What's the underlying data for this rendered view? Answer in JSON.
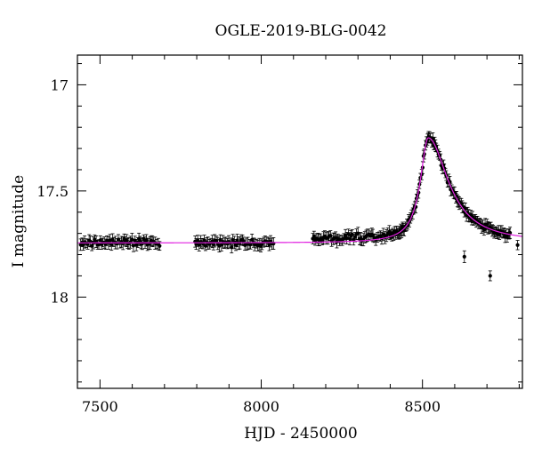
{
  "chart_data": {
    "type": "scatter",
    "title": "OGLE-2019-BLG-0042",
    "xlabel": "HJD - 2450000",
    "ylabel": "I magnitude",
    "xlim": [
      7430,
      8810
    ],
    "ylim": [
      18.43,
      16.86
    ],
    "y_inverted": true,
    "x_ticks": [
      7500,
      8000,
      8500
    ],
    "y_ticks": [
      17,
      17.5,
      18
    ],
    "x_minor_step": 100,
    "y_minor_step": 0.1,
    "grid": false,
    "colors": {
      "points": "#000000",
      "model": "#e020e0",
      "frame": "#000000"
    },
    "series": [
      {
        "kind": "observations",
        "seasons": [
          {
            "x_range": [
              7440,
              7685
            ],
            "baseline_mag": 17.745
          },
          {
            "x_range": [
              7795,
              8040
            ],
            "baseline_mag": 17.745
          },
          {
            "x_range": [
              8160,
              8400
            ],
            "baseline_mag": 17.73
          },
          {
            "x_range": [
              8400,
              8775
            ],
            "follows_model": true
          }
        ],
        "peak": {
          "x": 8518,
          "y": 17.25
        },
        "outliers": [
          {
            "x": 8630,
            "y": 17.81
          },
          {
            "x": 8710,
            "y": 17.9
          },
          {
            "x": 8795,
            "y": 17.755
          }
        ],
        "typical_error": 0.025
      },
      {
        "kind": "model",
        "baseline_mag": 17.745,
        "t0": 8518,
        "peak_mag": 17.25,
        "rise_timescale": 30,
        "decay_timescale": 75
      }
    ]
  }
}
